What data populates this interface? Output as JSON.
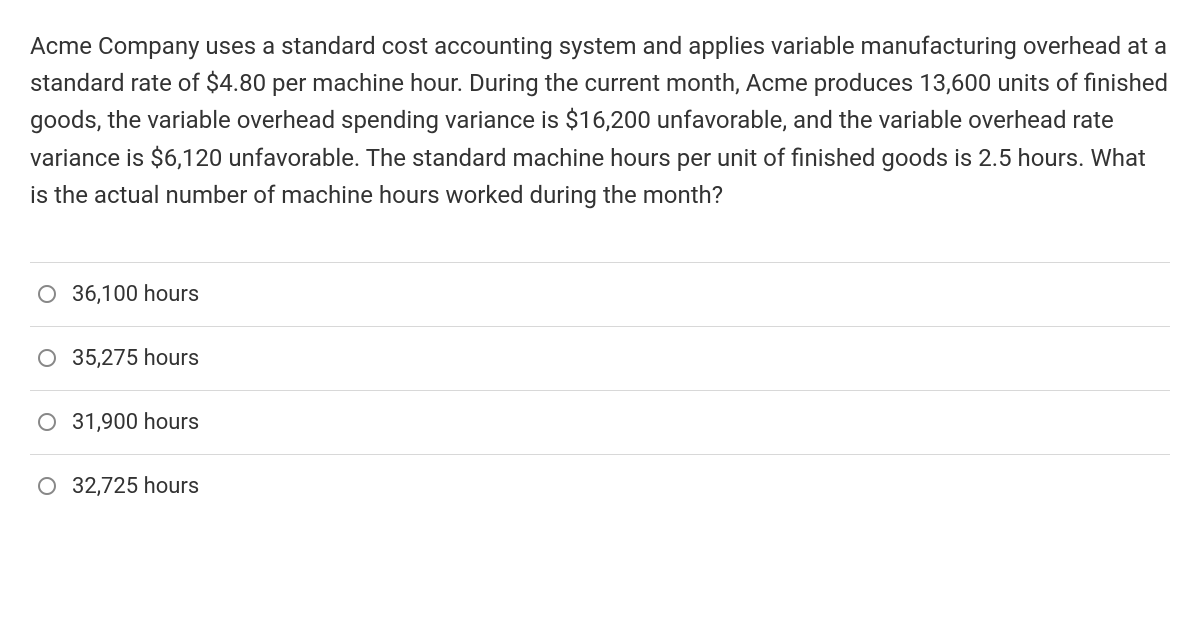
{
  "question": {
    "text": "Acme Company uses a standard cost accounting system and applies variable manufacturing overhead at a standard rate of $4.80 per machine hour. During the current month, Acme produces 13,600 units of finished goods, the variable overhead spending variance is $16,200 unfavorable, and the variable overhead rate variance is $6,120 unfavorable. The standard machine hours per unit of finished goods is 2.5 hours. What is the actual number of machine hours worked during the month?"
  },
  "options": [
    {
      "label": "36,100 hours",
      "selected": false
    },
    {
      "label": "35,275 hours",
      "selected": false
    },
    {
      "label": "31,900 hours",
      "selected": false
    },
    {
      "label": "32,725 hours",
      "selected": false
    }
  ],
  "styling": {
    "text_color": "#333333",
    "border_color": "#d8d8d8",
    "radio_border_color": "#888888",
    "background_color": "#ffffff",
    "question_fontsize": 24,
    "option_fontsize": 22,
    "line_height": 1.55
  }
}
